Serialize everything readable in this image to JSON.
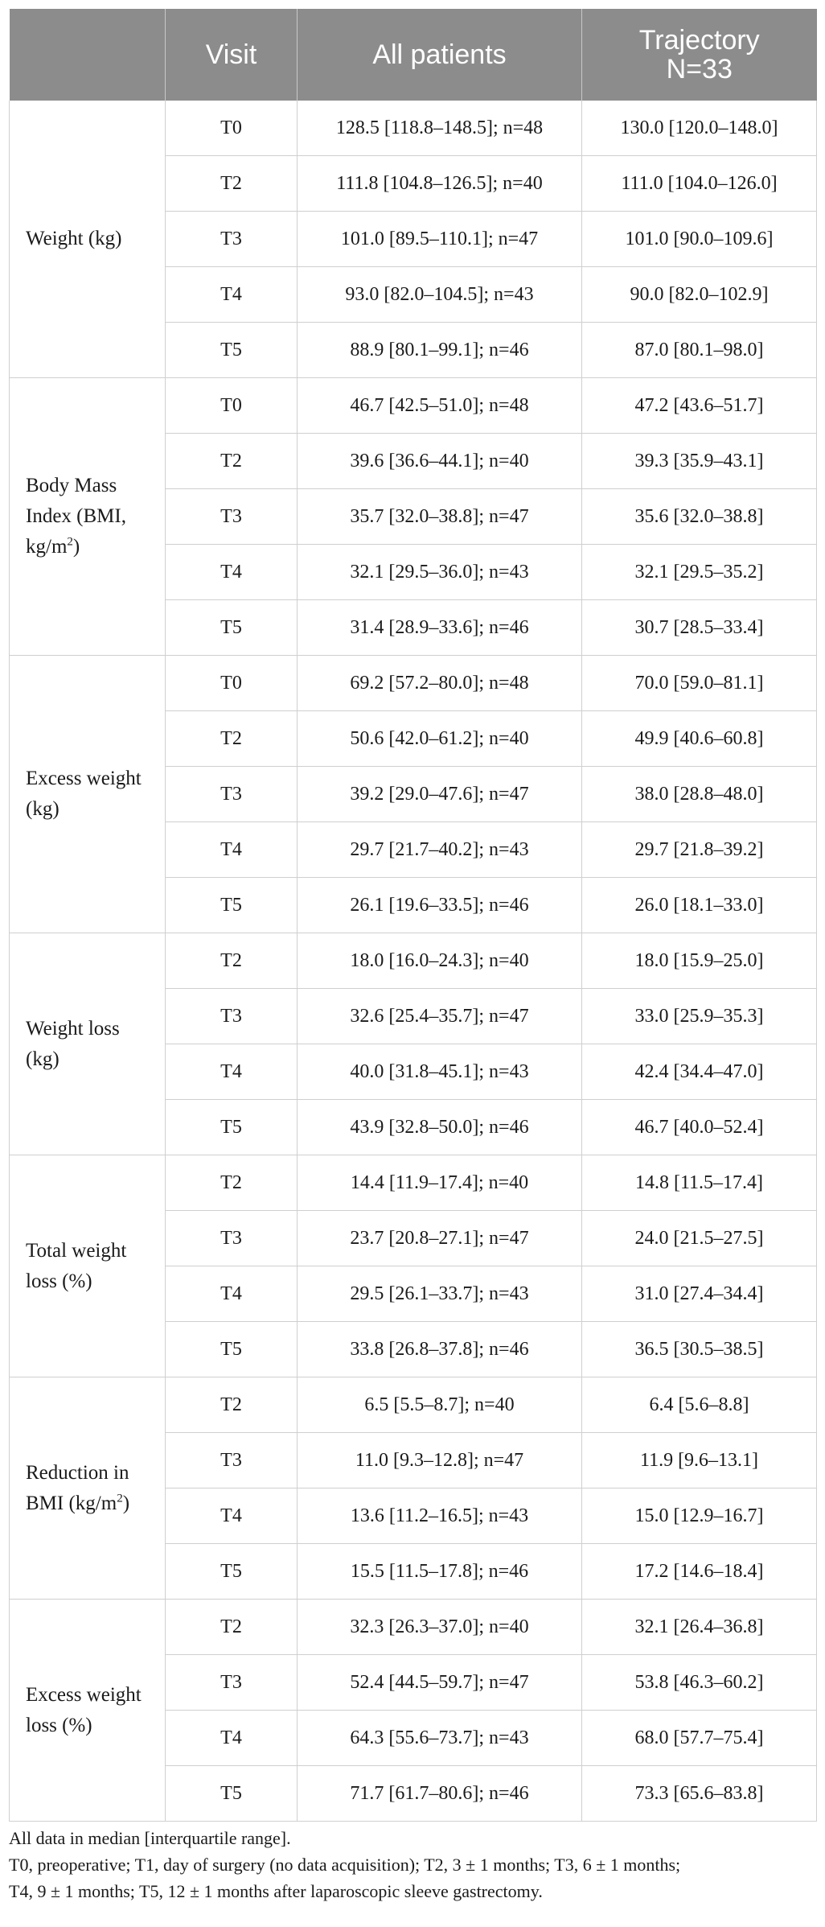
{
  "table": {
    "headers": [
      "",
      "Visit",
      "All patients",
      "Trajectory N=33"
    ],
    "header_line1_traj": "Trajectory",
    "header_line2_traj": "N=33",
    "groups": [
      {
        "label": "Weight (kg)",
        "rows": [
          {
            "visit": "T0",
            "all": "128.5 [118.8–148.5]; n=48",
            "traj": "130.0 [120.0–148.0]"
          },
          {
            "visit": "T2",
            "all": "111.8 [104.8–126.5]; n=40",
            "traj": "111.0 [104.0–126.0]"
          },
          {
            "visit": "T3",
            "all": "101.0 [89.5–110.1]; n=47",
            "traj": "101.0 [90.0–109.6]"
          },
          {
            "visit": "T4",
            "all": "93.0 [82.0–104.5]; n=43",
            "traj": "90.0 [82.0–102.9]"
          },
          {
            "visit": "T5",
            "all": "88.9 [80.1–99.1]; n=46",
            "traj": "87.0 [80.1–98.0]"
          }
        ]
      },
      {
        "label": "Body Mass Index (BMI, kg/m",
        "label_sup": "2",
        "label_after": ")",
        "rows": [
          {
            "visit": "T0",
            "all": "46.7 [42.5–51.0]; n=48",
            "traj": "47.2 [43.6–51.7]"
          },
          {
            "visit": "T2",
            "all": "39.6 [36.6–44.1]; n=40",
            "traj": "39.3 [35.9–43.1]"
          },
          {
            "visit": "T3",
            "all": "35.7 [32.0–38.8]; n=47",
            "traj": "35.6 [32.0–38.8]"
          },
          {
            "visit": "T4",
            "all": "32.1 [29.5–36.0]; n=43",
            "traj": "32.1 [29.5–35.2]"
          },
          {
            "visit": "T5",
            "all": "31.4 [28.9–33.6]; n=46",
            "traj": "30.7 [28.5–33.4]"
          }
        ]
      },
      {
        "label": "Excess weight (kg)",
        "rows": [
          {
            "visit": "T0",
            "all": "69.2 [57.2–80.0]; n=48",
            "traj": "70.0 [59.0–81.1]"
          },
          {
            "visit": "T2",
            "all": "50.6 [42.0–61.2]; n=40",
            "traj": "49.9 [40.6–60.8]"
          },
          {
            "visit": "T3",
            "all": "39.2 [29.0–47.6]; n=47",
            "traj": "38.0 [28.8–48.0]"
          },
          {
            "visit": "T4",
            "all": "29.7 [21.7–40.2]; n=43",
            "traj": "29.7 [21.8–39.2]"
          },
          {
            "visit": "T5",
            "all": "26.1 [19.6–33.5]; n=46",
            "traj": "26.0 [18.1–33.0]"
          }
        ]
      },
      {
        "label": "Weight loss (kg)",
        "rows": [
          {
            "visit": "T2",
            "all": "18.0 [16.0–24.3]; n=40",
            "traj": "18.0 [15.9–25.0]"
          },
          {
            "visit": "T3",
            "all": "32.6 [25.4–35.7]; n=47",
            "traj": "33.0 [25.9–35.3]"
          },
          {
            "visit": "T4",
            "all": "40.0 [31.8–45.1]; n=43",
            "traj": "42.4 [34.4–47.0]"
          },
          {
            "visit": "T5",
            "all": "43.9 [32.8–50.0]; n=46",
            "traj": "46.7 [40.0–52.4]"
          }
        ]
      },
      {
        "label": "Total weight loss (%)",
        "rows": [
          {
            "visit": "T2",
            "all": "14.4 [11.9–17.4]; n=40",
            "traj": "14.8 [11.5–17.4]"
          },
          {
            "visit": "T3",
            "all": "23.7 [20.8–27.1]; n=47",
            "traj": "24.0 [21.5–27.5]"
          },
          {
            "visit": "T4",
            "all": "29.5 [26.1–33.7]; n=43",
            "traj": "31.0 [27.4–34.4]"
          },
          {
            "visit": "T5",
            "all": "33.8 [26.8–37.8]; n=46",
            "traj": "36.5 [30.5–38.5]"
          }
        ]
      },
      {
        "label": "Reduction in BMI (kg/m",
        "label_sup": "2",
        "label_after": ")",
        "rows": [
          {
            "visit": "T2",
            "all": "6.5 [5.5–8.7]; n=40",
            "traj": "6.4 [5.6–8.8]"
          },
          {
            "visit": "T3",
            "all": "11.0 [9.3–12.8]; n=47",
            "traj": "11.9 [9.6–13.1]"
          },
          {
            "visit": "T4",
            "all": "13.6 [11.2–16.5]; n=43",
            "traj": "15.0 [12.9–16.7]"
          },
          {
            "visit": "T5",
            "all": "15.5 [11.5–17.8]; n=46",
            "traj": "17.2 [14.6–18.4]"
          }
        ]
      },
      {
        "label": "Excess weight loss (%)",
        "rows": [
          {
            "visit": "T2",
            "all": "32.3 [26.3–37.0]; n=40",
            "traj": "32.1 [26.4–36.8]"
          },
          {
            "visit": "T3",
            "all": "52.4 [44.5–59.7]; n=47",
            "traj": "53.8 [46.3–60.2]"
          },
          {
            "visit": "T4",
            "all": "64.3 [55.6–73.7]; n=43",
            "traj": "68.0 [57.7–75.4]"
          },
          {
            "visit": "T5",
            "all": "71.7 [61.7–80.6]; n=46",
            "traj": "73.3 [65.6–83.8]"
          }
        ]
      }
    ]
  },
  "notes": {
    "line1": "All data in median [interquartile range].",
    "line2": "T0, preoperative; T1, day of surgery (no data acquisition); T2, 3 ± 1 months; T3, 6 ± 1 months;",
    "line3": "T4, 9 ± 1 months; T5, 12 ± 1 months after laparoscopic sleeve gastrectomy."
  }
}
